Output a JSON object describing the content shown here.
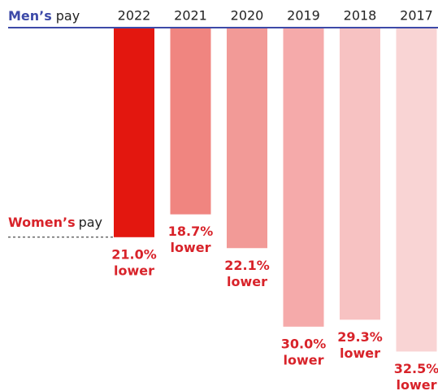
{
  "chart_data": {
    "type": "hanging-bar",
    "top_label": {
      "emphasis": "Men’s",
      "text": "pay"
    },
    "bottom_label": {
      "emphasis": "Women’s",
      "text": "pay"
    },
    "categories": [
      "2022",
      "2021",
      "2020",
      "2019",
      "2018",
      "2017"
    ],
    "values": [
      21.0,
      18.7,
      22.1,
      30.0,
      29.3,
      32.5
    ],
    "value_labels": [
      "21.0%",
      "18.7%",
      "22.1%",
      "30.0%",
      "29.3%",
      "32.5%"
    ],
    "value_note": "lower",
    "colors": [
      "#e3170f",
      "#f08580",
      "#f29a97",
      "#f5aaaa",
      "#f7c2c2",
      "#f9d4d4"
    ],
    "ylim": [
      0,
      35
    ],
    "inverted": true
  }
}
